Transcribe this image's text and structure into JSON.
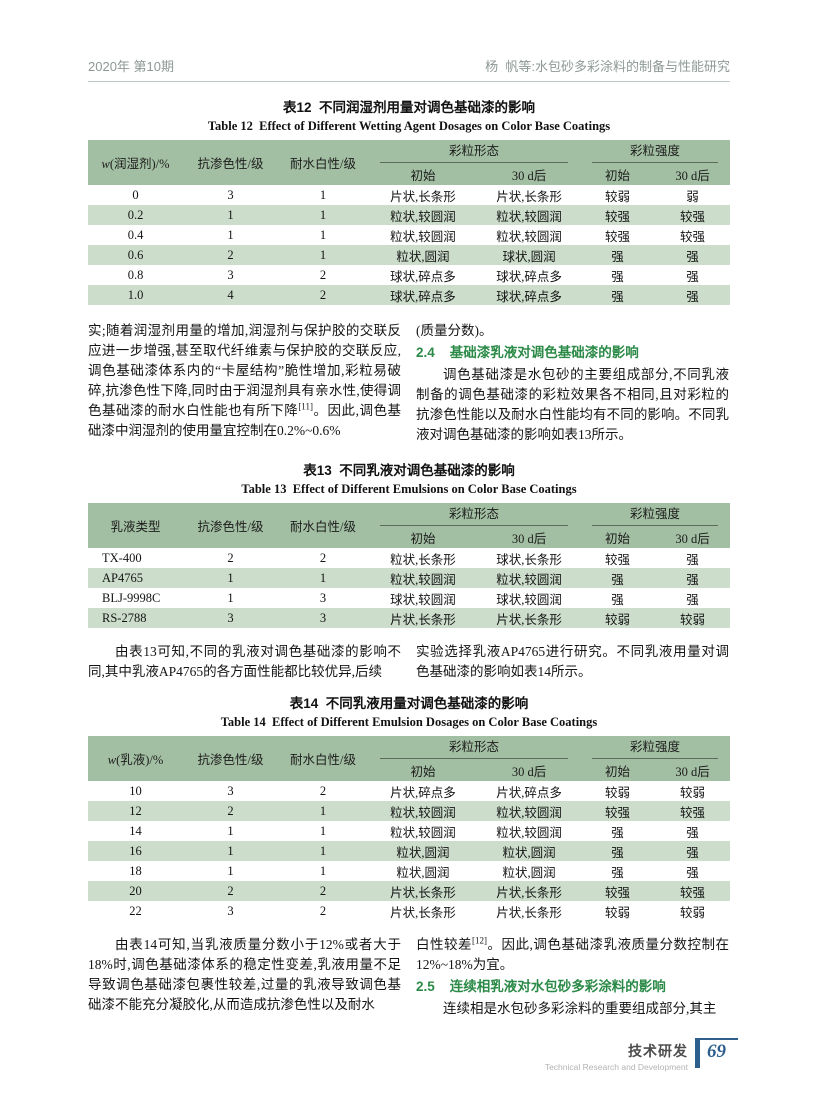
{
  "header": {
    "left": "2020年 第10期",
    "right": "杨  帆等:水包砂多彩涂料的制备与性能研究"
  },
  "tables": {
    "t12": {
      "title_cn": "表12  不同润湿剂用量对调色基础漆的影响",
      "title_en": "Table 12  Effect of Different Wetting Agent Dosages on Color Base Coatings",
      "col1_it": "w",
      "col1_rest": "(润湿剂)/%",
      "col2": "抗渗色性/级",
      "col3": "耐水白性/级",
      "group1": "彩粒形态",
      "group2": "彩粒强度",
      "sub": [
        "初始",
        "30 d后",
        "初始",
        "30 d后"
      ],
      "rows": [
        [
          "0",
          "3",
          "1",
          "片状,长条形",
          "片状,长条形",
          "较弱",
          "弱"
        ],
        [
          "0.2",
          "1",
          "1",
          "粒状,较圆润",
          "粒状,较圆润",
          "较强",
          "较强"
        ],
        [
          "0.4",
          "1",
          "1",
          "粒状,较圆润",
          "粒状,较圆润",
          "较强",
          "较强"
        ],
        [
          "0.6",
          "2",
          "1",
          "粒状,圆润",
          "球状,圆润",
          "强",
          "强"
        ],
        [
          "0.8",
          "3",
          "2",
          "球状,碎点多",
          "球状,碎点多",
          "强",
          "强"
        ],
        [
          "1.0",
          "4",
          "2",
          "球状,碎点多",
          "球状,碎点多",
          "强",
          "强"
        ]
      ]
    },
    "t13": {
      "title_cn": "表13  不同乳液对调色基础漆的影响",
      "title_en": "Table 13  Effect of Different Emulsions on Color Base Coatings",
      "col1_it": "",
      "col1_rest": "乳液类型",
      "col2": "抗渗色性/级",
      "col3": "耐水白性/级",
      "group1": "彩粒形态",
      "group2": "彩粒强度",
      "sub": [
        "初始",
        "30 d后",
        "初始",
        "30 d后"
      ],
      "rows": [
        [
          "TX-400",
          "2",
          "2",
          "粒状,长条形",
          "球状,长条形",
          "较强",
          "强"
        ],
        [
          "AP4765",
          "1",
          "1",
          "粒状,较圆润",
          "粒状,较圆润",
          "强",
          "强"
        ],
        [
          "BLJ-9998C",
          "1",
          "3",
          "球状,较圆润",
          "球状,较圆润",
          "强",
          "强"
        ],
        [
          "RS-2788",
          "3",
          "3",
          "片状,长条形",
          "片状,长条形",
          "较弱",
          "较弱"
        ]
      ]
    },
    "t14": {
      "title_cn": "表14  不同乳液用量对调色基础漆的影响",
      "title_en": "Table 14  Effect of Different Emulsion Dosages on Color Base Coatings",
      "col1_it": "w",
      "col1_rest": "(乳液)/%",
      "col2": "抗渗色性/级",
      "col3": "耐水白性/级",
      "group1": "彩粒形态",
      "group2": "彩粒强度",
      "sub": [
        "初始",
        "30 d后",
        "初始",
        "30 d后"
      ],
      "rows": [
        [
          "10",
          "3",
          "2",
          "片状,碎点多",
          "片状,碎点多",
          "较弱",
          "较弱"
        ],
        [
          "12",
          "2",
          "1",
          "粒状,较圆润",
          "粒状,较圆润",
          "较强",
          "较强"
        ],
        [
          "14",
          "1",
          "1",
          "粒状,较圆润",
          "粒状,较圆润",
          "强",
          "强"
        ],
        [
          "16",
          "1",
          "1",
          "粒状,圆润",
          "粒状,圆润",
          "强",
          "强"
        ],
        [
          "18",
          "1",
          "1",
          "粒状,圆润",
          "粒状,圆润",
          "强",
          "强"
        ],
        [
          "20",
          "2",
          "2",
          "片状,长条形",
          "片状,长条形",
          "较强",
          "较强"
        ],
        [
          "22",
          "3",
          "2",
          "片状,长条形",
          "片状,长条形",
          "较弱",
          "较弱"
        ]
      ]
    }
  },
  "paragraphs": {
    "p1_pre": "实;随着润湿剂用量的增加,润湿剂与保护胶的交联反应进一步增强,甚至取代纤维素与保护胶的交联反应,调色基础漆体系内的“卡屋结构”脆性增加,彩粒易破碎,抗渗色性下降,同时由于润湿剂具有亲水性,使得调色基础漆的耐水白性能也有所下降",
    "p1_sup": "[11]",
    "p1_post": "。因此,调色基础漆中润湿剂的使用量宜控制在0.2%~0.6%",
    "p2": "(质量分数)。",
    "p3": "调色基础漆是水包砂的主要组成部分,不同乳液制备的调色基础漆的彩粒效果各不相同,且对彩粒的抗渗色性能以及耐水白性能均有不同的影响。不同乳液对调色基础漆的影响如表13所示。",
    "p4": "由表13可知,不同的乳液对调色基础漆的影响不同,其中乳液AP4765的各方面性能都比较优异,后续",
    "p5": "实验选择乳液AP4765进行研究。不同乳液用量对调色基础漆的影响如表14所示。",
    "p6": "由表14可知,当乳液质量分数小于12%或者大于18%时,调色基础漆体系的稳定性变差,乳液用量不足导致调色基础漆包裹性较差,过量的乳液导致调色基础漆不能充分凝胶化,从而造成抗渗色性以及耐水",
    "p7_pre": "白性较差",
    "p7_sup": "[12]",
    "p7_post": "。因此,调色基础漆乳液质量分数控制在12%~18%为宜。",
    "p8": "连续相是水包砂多彩涂料的重要组成部分,其主"
  },
  "sections": {
    "s24_num": "2.4",
    "s24_title": "基础漆乳液对调色基础漆的影响",
    "s25_num": "2.5",
    "s25_title": "连续相乳液对水包砂多彩涂料的影响"
  },
  "footer": {
    "section_cn": "技术研发",
    "section_en": "Technical Research and Development",
    "page_number": "69"
  },
  "colors": {
    "table_header_bg": "#a3bfa3",
    "row_shade_bg": "#ccdecb",
    "section_heading": "#2b8a47",
    "page_number_blue": "#2e5e8c",
    "header_text": "#8e9994"
  }
}
